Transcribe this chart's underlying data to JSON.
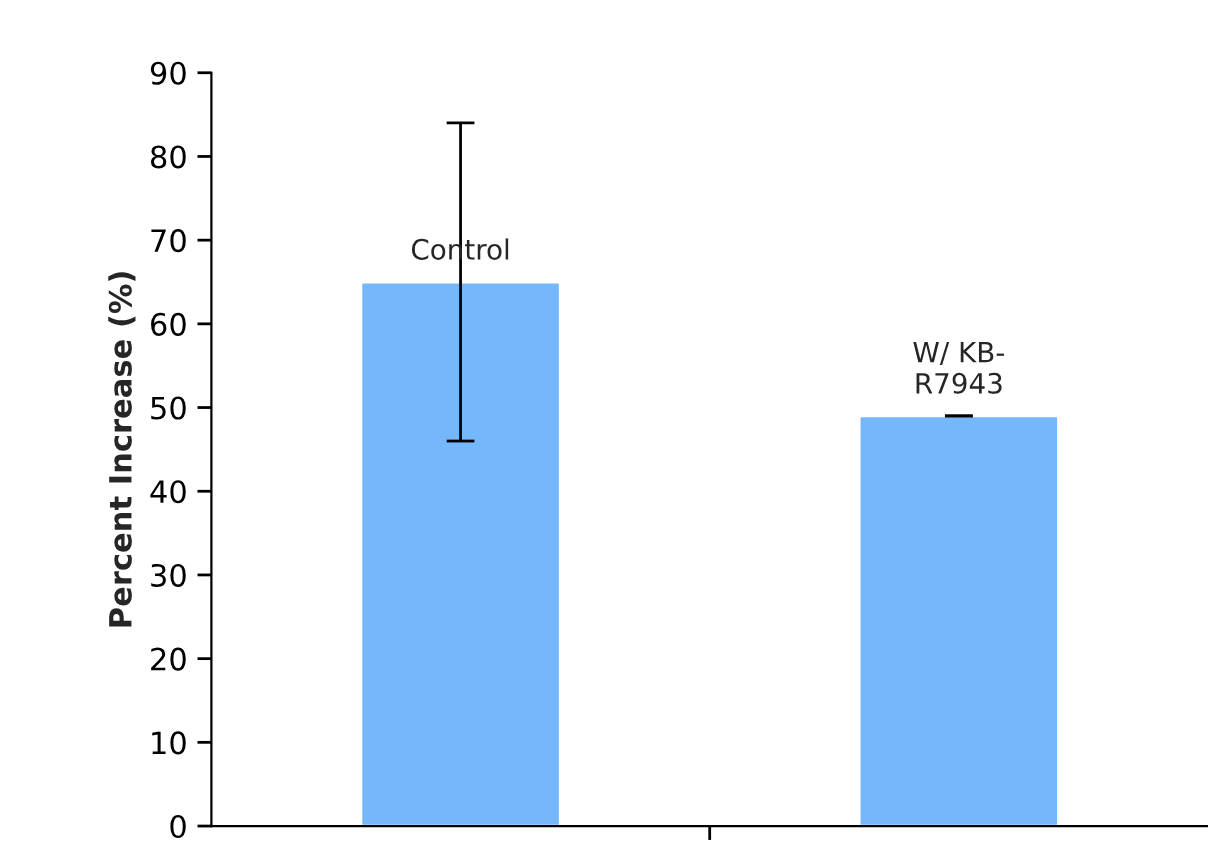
{
  "chart_data": {
    "type": "bar",
    "ylabel": "Percent Increase (%)",
    "categories": [
      "Control",
      "W/ KB-R7943"
    ],
    "values": [
      65,
      49
    ],
    "errors": [
      [
        46,
        84
      ],
      0
    ],
    "color": "#74b8fb",
    "ylim": [
      0,
      90
    ],
    "yticks": [
      0,
      10,
      20,
      30,
      40,
      50,
      60,
      70,
      80,
      90
    ],
    "grid": false,
    "legend": false
  }
}
